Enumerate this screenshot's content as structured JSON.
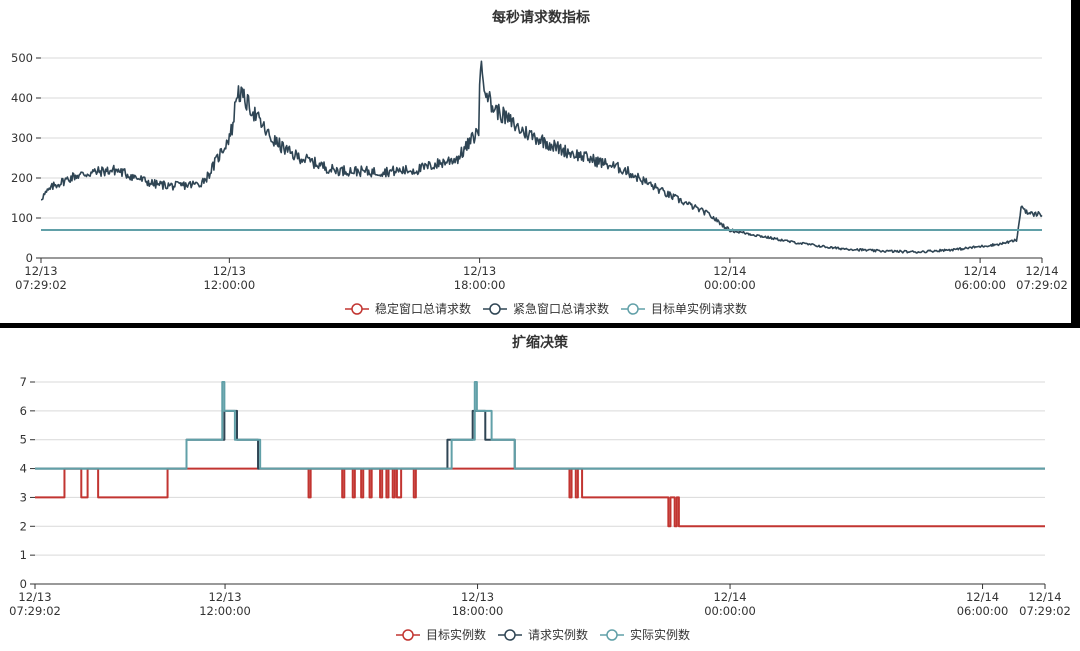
{
  "chart_data": [
    {
      "type": "line",
      "title": "每秒请求数指标",
      "ylim": [
        0,
        500
      ],
      "yticks": [
        0,
        100,
        200,
        300,
        400,
        500
      ],
      "x_unit": "hours since 12/13 07:29:02",
      "xlim": [
        0,
        24
      ],
      "xticks": [
        {
          "x": 0,
          "label": [
            "12/13",
            "07:29:02"
          ]
        },
        {
          "x": 4.516,
          "label": [
            "12/13",
            "12:00:00"
          ]
        },
        {
          "x": 10.516,
          "label": [
            "12/13",
            "18:00:00"
          ]
        },
        {
          "x": 16.516,
          "label": [
            "12/14",
            "00:00:00"
          ]
        },
        {
          "x": 22.516,
          "label": [
            "12/14",
            "06:00:00"
          ]
        },
        {
          "x": 24,
          "label": [
            "12/14",
            "07:29:02"
          ]
        }
      ],
      "legend": [
        "稳定窗口总请求数",
        "紧急窗口总请求数",
        "目标单实例请求数"
      ],
      "series": [
        {
          "name": "稳定窗口总请求数",
          "color": "#c23531",
          "values": []
        },
        {
          "name": "紧急窗口总请求数",
          "color": "#2f4554",
          "noisy": true,
          "points": [
            [
              0,
              150
            ],
            [
              0.3,
              180
            ],
            [
              0.8,
              205
            ],
            [
              1.3,
              215
            ],
            [
              1.8,
              220
            ],
            [
              2.3,
              200
            ],
            [
              2.7,
              185
            ],
            [
              3.2,
              180
            ],
            [
              3.8,
              185
            ],
            [
              4.0,
              205
            ],
            [
              4.4,
              280
            ],
            [
              4.5,
              300
            ],
            [
              4.6,
              330
            ],
            [
              4.7,
              420
            ],
            [
              5.0,
              380
            ],
            [
              5.5,
              300
            ],
            [
              6.0,
              260
            ],
            [
              7.0,
              220
            ],
            [
              8.0,
              215
            ],
            [
              9.0,
              220
            ],
            [
              10.0,
              250
            ],
            [
              10.5,
              320
            ],
            [
              10.52,
              480
            ],
            [
              10.8,
              380
            ],
            [
              11.5,
              320
            ],
            [
              12.5,
              270
            ],
            [
              14.0,
              220
            ],
            [
              15.0,
              160
            ],
            [
              16.0,
              110
            ],
            [
              16.5,
              70
            ],
            [
              17.0,
              60
            ],
            [
              18.0,
              40
            ],
            [
              19.0,
              25
            ],
            [
              20.0,
              18
            ],
            [
              21.0,
              15
            ],
            [
              22.0,
              22
            ],
            [
              23.0,
              35
            ],
            [
              23.4,
              45
            ],
            [
              23.5,
              130
            ],
            [
              23.7,
              110
            ],
            [
              24.0,
              110
            ]
          ]
        },
        {
          "name": "目标单实例请求数",
          "color": "#61a0a8",
          "points": [
            [
              0,
              70
            ],
            [
              24,
              70
            ]
          ]
        }
      ]
    },
    {
      "type": "line",
      "title": "扩缩决策",
      "ylim": [
        0,
        7
      ],
      "yticks": [
        0,
        1,
        2,
        3,
        4,
        5,
        6,
        7
      ],
      "x_unit": "hours since 12/13 07:29:02",
      "xlim": [
        0,
        24
      ],
      "xticks": [
        {
          "x": 0,
          "label": [
            "12/13",
            "07:29:02"
          ]
        },
        {
          "x": 4.516,
          "label": [
            "12/13",
            "12:00:00"
          ]
        },
        {
          "x": 10.516,
          "label": [
            "12/13",
            "18:00:00"
          ]
        },
        {
          "x": 16.516,
          "label": [
            "12/14",
            "00:00:00"
          ]
        },
        {
          "x": 22.516,
          "label": [
            "12/14",
            "06:00:00"
          ]
        },
        {
          "x": 24,
          "label": [
            "12/14",
            "07:29:02"
          ]
        }
      ],
      "legend": [
        "目标实例数",
        "请求实例数",
        "实际实例数"
      ],
      "series": [
        {
          "name": "目标实例数",
          "color": "#c23531",
          "points": [
            [
              0,
              3
            ],
            [
              0.7,
              3
            ],
            [
              0.7,
              4
            ],
            [
              1.1,
              4
            ],
            [
              1.1,
              3
            ],
            [
              1.25,
              3
            ],
            [
              1.25,
              4
            ],
            [
              1.5,
              4
            ],
            [
              1.5,
              3
            ],
            [
              3.15,
              3
            ],
            [
              3.15,
              4
            ],
            [
              6.5,
              4
            ],
            [
              6.5,
              3
            ],
            [
              6.55,
              3
            ],
            [
              6.55,
              4
            ],
            [
              7.3,
              4
            ],
            [
              7.3,
              3
            ],
            [
              7.35,
              3
            ],
            [
              7.35,
              4
            ],
            [
              7.55,
              4
            ],
            [
              7.55,
              3
            ],
            [
              7.6,
              3
            ],
            [
              7.6,
              4
            ],
            [
              7.75,
              4
            ],
            [
              7.75,
              3
            ],
            [
              7.8,
              3
            ],
            [
              7.8,
              4
            ],
            [
              7.95,
              4
            ],
            [
              7.95,
              3
            ],
            [
              8.0,
              3
            ],
            [
              8.0,
              4
            ],
            [
              8.2,
              4
            ],
            [
              8.2,
              3
            ],
            [
              8.25,
              3
            ],
            [
              8.25,
              4
            ],
            [
              8.35,
              4
            ],
            [
              8.35,
              3
            ],
            [
              8.4,
              3
            ],
            [
              8.4,
              4
            ],
            [
              8.5,
              4
            ],
            [
              8.5,
              3
            ],
            [
              8.55,
              3
            ],
            [
              8.55,
              4
            ],
            [
              8.6,
              4
            ],
            [
              8.6,
              3
            ],
            [
              8.7,
              3
            ],
            [
              8.7,
              4
            ],
            [
              9.0,
              4
            ],
            [
              9.0,
              3
            ],
            [
              9.05,
              3
            ],
            [
              9.05,
              4
            ],
            [
              12.7,
              4
            ],
            [
              12.7,
              3
            ],
            [
              12.75,
              3
            ],
            [
              12.75,
              4
            ],
            [
              12.85,
              4
            ],
            [
              12.85,
              3
            ],
            [
              12.9,
              3
            ],
            [
              12.9,
              4
            ],
            [
              13.0,
              4
            ],
            [
              13.0,
              3
            ],
            [
              15.05,
              3
            ],
            [
              15.05,
              2
            ],
            [
              15.1,
              2
            ],
            [
              15.1,
              3
            ],
            [
              15.2,
              3
            ],
            [
              15.2,
              2
            ],
            [
              15.25,
              2
            ],
            [
              15.25,
              3
            ],
            [
              15.3,
              3
            ],
            [
              15.3,
              2
            ],
            [
              24,
              2
            ]
          ]
        },
        {
          "name": "请求实例数",
          "color": "#2f4554",
          "points": [
            [
              0,
              4
            ],
            [
              3.6,
              4
            ],
            [
              3.6,
              5
            ],
            [
              4.5,
              5
            ],
            [
              4.5,
              6
            ],
            [
              4.8,
              6
            ],
            [
              4.8,
              5
            ],
            [
              5.3,
              5
            ],
            [
              5.3,
              4
            ],
            [
              9.8,
              4
            ],
            [
              9.8,
              5
            ],
            [
              10.4,
              5
            ],
            [
              10.4,
              6
            ],
            [
              10.7,
              6
            ],
            [
              10.7,
              5
            ],
            [
              11.4,
              5
            ],
            [
              11.4,
              4
            ],
            [
              24,
              4
            ]
          ]
        },
        {
          "name": "实际实例数",
          "color": "#61a0a8",
          "points": [
            [
              0,
              4
            ],
            [
              3.6,
              4
            ],
            [
              3.6,
              5
            ],
            [
              4.45,
              5
            ],
            [
              4.45,
              7
            ],
            [
              4.5,
              7
            ],
            [
              4.5,
              6
            ],
            [
              4.75,
              6
            ],
            [
              4.75,
              5
            ],
            [
              5.35,
              5
            ],
            [
              5.35,
              4
            ],
            [
              9.9,
              4
            ],
            [
              9.9,
              5
            ],
            [
              10.45,
              5
            ],
            [
              10.45,
              7
            ],
            [
              10.5,
              7
            ],
            [
              10.5,
              6
            ],
            [
              10.85,
              6
            ],
            [
              10.85,
              5
            ],
            [
              11.4,
              5
            ],
            [
              11.4,
              4
            ],
            [
              24,
              4
            ]
          ]
        }
      ]
    }
  ]
}
